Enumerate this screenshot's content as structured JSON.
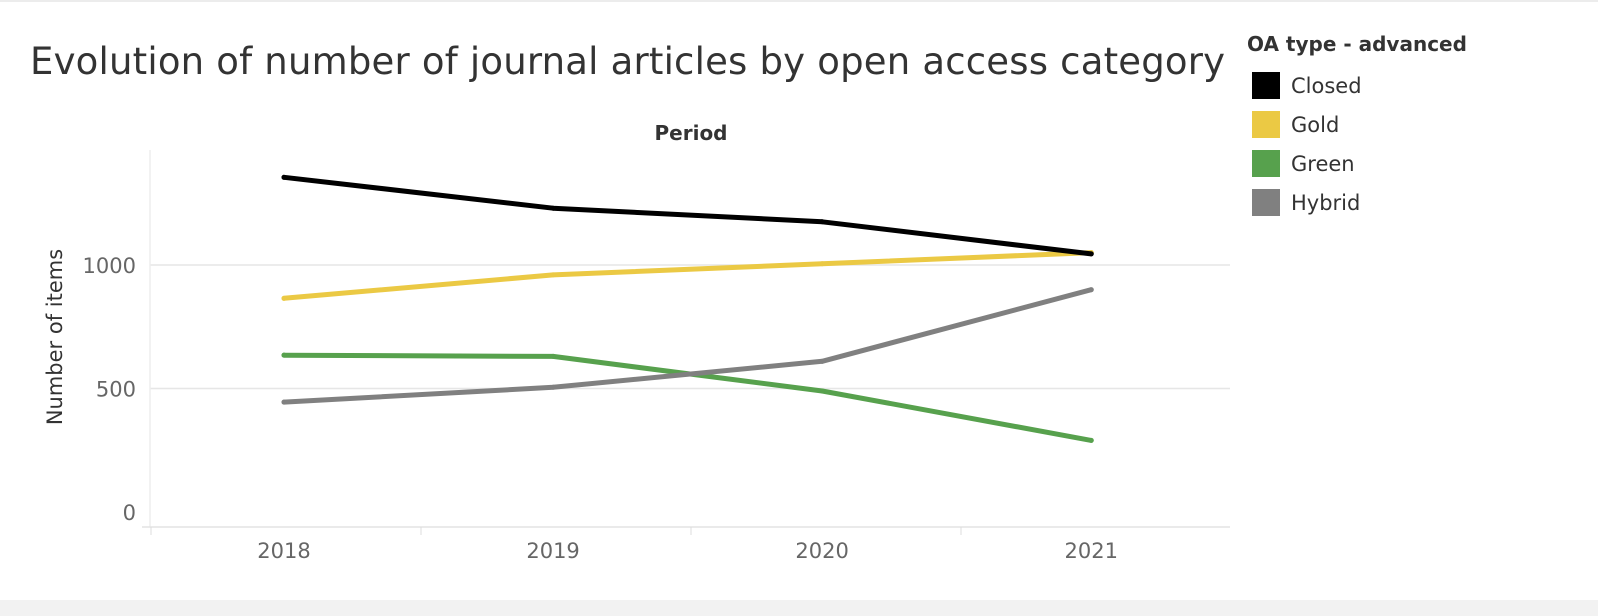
{
  "chart_data": {
    "type": "line",
    "title": "Evolution of number of journal articles by open access category",
    "xlabel": "Period",
    "ylabel": "Number of items",
    "categories": [
      "2018",
      "2019",
      "2020",
      "2021"
    ],
    "ylim": [
      0,
      1440
    ],
    "yticks": [
      0,
      500,
      1000
    ],
    "grid": true,
    "legend": {
      "title": "OA type - advanced",
      "placement": "right"
    },
    "series": [
      {
        "name": "Closed",
        "color": "#000000",
        "values": [
          1355,
          1230,
          1175,
          1045
        ]
      },
      {
        "name": "Gold",
        "color": "#ebc944",
        "values": [
          865,
          960,
          1005,
          1050
        ]
      },
      {
        "name": "Green",
        "color": "#57a14d",
        "values": [
          635,
          630,
          490,
          290
        ]
      },
      {
        "name": "Hybrid",
        "color": "#808080",
        "values": [
          445,
          505,
          610,
          900
        ]
      }
    ]
  }
}
